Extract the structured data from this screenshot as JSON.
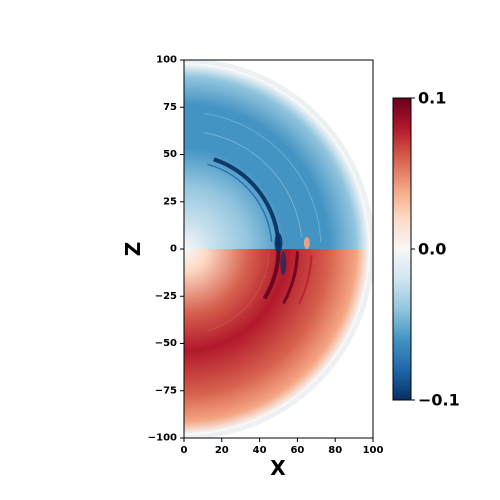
{
  "chart_data": {
    "type": "heatmap",
    "title": "",
    "xlabel": "X",
    "ylabel": "Z",
    "xlim": [
      0,
      100
    ],
    "ylim": [
      -100,
      100
    ],
    "xticks": [
      "0",
      "20",
      "40",
      "60",
      "80",
      "100"
    ],
    "yticks": [
      "100",
      "75",
      "50",
      "25",
      "0",
      "−25",
      "−50",
      "−75",
      "−100"
    ],
    "grid": false,
    "colormap": "RdBu_r",
    "colorbar": {
      "range": [
        -0.1,
        0.1
      ],
      "tick_labels": [
        "0.1",
        "0.0",
        "−0.1"
      ],
      "colors": [
        "#053061",
        "#2166ac",
        "#4393c3",
        "#92c5de",
        "#d1e5f0",
        "#f7f7f7",
        "#fddbc7",
        "#f4a582",
        "#d6604d",
        "#b2182b",
        "#67001f"
      ]
    },
    "field": {
      "domain_shape": "half-disk",
      "outer_radius": 98,
      "upper_half_sign": "negative",
      "lower_half_sign": "positive",
      "front_shell_radius": 50,
      "front_shell_value_range": [
        -0.1,
        0.1
      ],
      "peak_band_radius": [
        70,
        95
      ]
    }
  }
}
